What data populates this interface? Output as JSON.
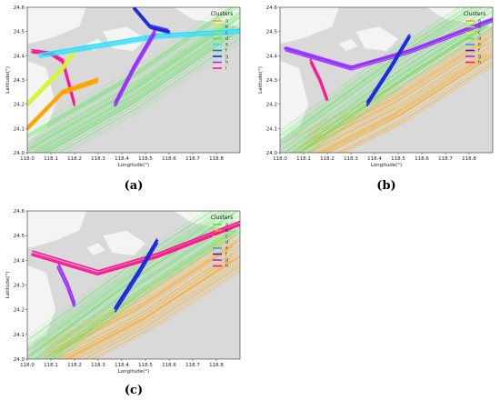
{
  "chart_data": [
    {
      "type": "line",
      "panel_label": "(a)",
      "xlabel": "Longitude(°)",
      "ylabel": "Latitude(°)",
      "xlim": [
        118.0,
        118.9
      ],
      "ylim": [
        24.0,
        24.6
      ],
      "x_ticks": [
        "118.0",
        "118.1",
        "118.2",
        "118.3",
        "118.4",
        "118.5",
        "118.6",
        "118.7",
        "118.8"
      ],
      "y_ticks": [
        "24.0",
        "24.1",
        "24.2",
        "24.3",
        "24.4",
        "24.5",
        "24.6"
      ],
      "legend": {
        "title": "Clusters",
        "placement": "top-right",
        "entries": [
          {
            "name": "a",
            "color": "#ffa500"
          },
          {
            "name": "b",
            "color": "#d6f53b"
          },
          {
            "name": "c",
            "color": "#9ef03c"
          },
          {
            "name": "d",
            "color": "#4ee84e"
          },
          {
            "name": "e",
            "color": "#2edfff"
          },
          {
            "name": "f",
            "color": "#2d6ad9"
          },
          {
            "name": "g",
            "color": "#1f28e0"
          },
          {
            "name": "h",
            "color": "#9b30ff"
          },
          {
            "name": "i",
            "color": "#ff1493"
          }
        ]
      },
      "series": [
        {
          "cluster": "i",
          "color": "#ff1493",
          "x": [
            118.02,
            118.1,
            118.15,
            118.2
          ],
          "y": [
            24.42,
            24.41,
            24.38,
            24.2
          ]
        },
        {
          "cluster": "a",
          "color": "#ffa500",
          "x": [
            118.0,
            118.15,
            118.3
          ],
          "y": [
            24.1,
            24.25,
            24.3
          ]
        },
        {
          "cluster": "b",
          "color": "#d6f53b",
          "x": [
            118.0,
            118.15,
            118.2
          ],
          "y": [
            24.2,
            24.35,
            24.42
          ]
        },
        {
          "cluster": "d",
          "color": "#4ee84e",
          "x": [
            118.0,
            118.45,
            118.9
          ],
          "y": [
            24.0,
            24.25,
            24.55
          ]
        },
        {
          "cluster": "e",
          "color": "#2edfff",
          "x": [
            118.05,
            118.3,
            118.55,
            118.9
          ],
          "y": [
            24.4,
            24.44,
            24.48,
            24.5
          ]
        },
        {
          "cluster": "h",
          "color": "#9b30ff",
          "x": [
            118.37,
            118.45,
            118.54
          ],
          "y": [
            24.2,
            24.35,
            24.5
          ]
        },
        {
          "cluster": "g",
          "color": "#1f28e0",
          "x": [
            118.45,
            118.52,
            118.6
          ],
          "y": [
            24.6,
            24.52,
            24.5
          ]
        }
      ]
    },
    {
      "type": "line",
      "panel_label": "(b)",
      "xlabel": "Longitude(°)",
      "ylabel": "Latitude(°)",
      "xlim": [
        118.0,
        118.9
      ],
      "ylim": [
        24.0,
        24.6
      ],
      "x_ticks": [
        "118.0",
        "118.1",
        "118.2",
        "118.3",
        "118.4",
        "118.5",
        "118.6",
        "118.7",
        "118.8"
      ],
      "y_ticks": [
        "24.0",
        "24.1",
        "24.2",
        "24.3",
        "24.4",
        "24.5",
        "24.6"
      ],
      "legend": {
        "title": "Clusters",
        "placement": "top-right",
        "entries": [
          {
            "name": "a",
            "color": "#ffa500"
          },
          {
            "name": "b",
            "color": "#9ef03c"
          },
          {
            "name": "c",
            "color": "#d6f53b"
          },
          {
            "name": "d",
            "color": "#4ee84e"
          },
          {
            "name": "e",
            "color": "#2e9fdf"
          },
          {
            "name": "f",
            "color": "#1f28e0"
          },
          {
            "name": "g",
            "color": "#9b30ff"
          },
          {
            "name": "h",
            "color": "#ff1493"
          }
        ]
      },
      "series": [
        {
          "cluster": "a",
          "color": "#ffa500",
          "x": [
            118.1,
            118.5,
            118.9
          ],
          "y": [
            24.0,
            24.2,
            24.45
          ]
        },
        {
          "cluster": "d",
          "color": "#4ee84e",
          "x": [
            118.0,
            118.5,
            118.9
          ],
          "y": [
            24.0,
            24.35,
            24.6
          ]
        },
        {
          "cluster": "g",
          "color": "#9b30ff",
          "x": [
            118.02,
            118.3,
            118.55,
            118.9
          ],
          "y": [
            24.43,
            24.35,
            24.42,
            24.55
          ]
        },
        {
          "cluster": "f",
          "color": "#1f28e0",
          "x": [
            118.37,
            118.47,
            118.55
          ],
          "y": [
            24.2,
            24.35,
            24.48
          ]
        },
        {
          "cluster": "h",
          "color": "#ff1493",
          "x": [
            118.13,
            118.17,
            118.2
          ],
          "y": [
            24.38,
            24.3,
            24.22
          ]
        }
      ]
    },
    {
      "type": "line",
      "panel_label": "(c)",
      "xlabel": "Longitude(°)",
      "ylabel": "Latitude(°)",
      "xlim": [
        118.0,
        118.9
      ],
      "ylim": [
        24.0,
        24.6
      ],
      "x_ticks": [
        "118.0",
        "118.1",
        "118.2",
        "118.3",
        "118.4",
        "118.5",
        "118.6",
        "118.7",
        "118.8"
      ],
      "y_ticks": [
        "24.0",
        "24.1",
        "24.2",
        "24.3",
        "24.4",
        "24.5",
        "24.6"
      ],
      "legend": {
        "title": "Clusters",
        "placement": "top-right",
        "entries": [
          {
            "name": "a",
            "color": "#4ee84e"
          },
          {
            "name": "b",
            "color": "#ffa500"
          },
          {
            "name": "c",
            "color": "#d6f53b"
          },
          {
            "name": "d",
            "color": "#9ef03c"
          },
          {
            "name": "e",
            "color": "#2e9fdf"
          },
          {
            "name": "f",
            "color": "#1f28e0"
          },
          {
            "name": "g",
            "color": "#9b30ff"
          },
          {
            "name": "h",
            "color": "#ff1493"
          }
        ]
      },
      "series": [
        {
          "cluster": "b",
          "color": "#ffa500",
          "x": [
            118.1,
            118.5,
            118.9
          ],
          "y": [
            24.0,
            24.2,
            24.45
          ]
        },
        {
          "cluster": "a",
          "color": "#4ee84e",
          "x": [
            118.0,
            118.5,
            118.9
          ],
          "y": [
            24.0,
            24.35,
            24.6
          ]
        },
        {
          "cluster": "h",
          "color": "#ff1493",
          "x": [
            118.02,
            118.3,
            118.55,
            118.9
          ],
          "y": [
            24.43,
            24.35,
            24.42,
            24.55
          ]
        },
        {
          "cluster": "f",
          "color": "#1f28e0",
          "x": [
            118.37,
            118.47,
            118.55
          ],
          "y": [
            24.2,
            24.35,
            24.48
          ]
        },
        {
          "cluster": "g",
          "color": "#9b30ff",
          "x": [
            118.13,
            118.17,
            118.2
          ],
          "y": [
            24.38,
            24.3,
            24.22
          ]
        }
      ]
    }
  ]
}
